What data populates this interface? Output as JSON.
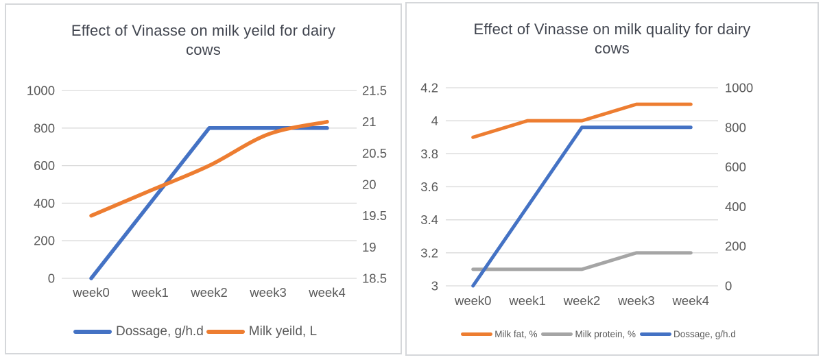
{
  "colors": {
    "blue": "#4472C4",
    "orange": "#ED7D31",
    "gray": "#A5A5A5",
    "gridline": "#d9d9d9",
    "tick_text": "#595959",
    "title_text": "#41454f",
    "card_border": "#d5d7da"
  },
  "chart_data": [
    {
      "type": "line",
      "title": "Effect of Vinasse on milk yeild for dairy cows",
      "categories": [
        "week0",
        "week1",
        "week2",
        "week3",
        "week4"
      ],
      "grid": "horizontal",
      "legend_position": "bottom",
      "axes": {
        "left": {
          "min": 0,
          "max": 1000,
          "step": 200,
          "labels": [
            "1000",
            "800",
            "600",
            "400",
            "200",
            "0"
          ]
        },
        "right": {
          "min": 18.5,
          "max": 21.5,
          "step": 0.5,
          "labels": [
            "21.5",
            "21",
            "20.5",
            "20",
            "19.5",
            "19",
            "18.5"
          ]
        }
      },
      "series": [
        {
          "name": "Dossage, g/h.d",
          "color": "#4472C4",
          "axis": "left",
          "smooth": false,
          "values": [
            0,
            400,
            800,
            800,
            800
          ]
        },
        {
          "name": "Milk yeild, L",
          "color": "#ED7D31",
          "axis": "right",
          "smooth": true,
          "values": [
            19.5,
            19.9,
            20.3,
            20.8,
            21
          ]
        }
      ]
    },
    {
      "type": "line",
      "title": "Effect of Vinasse on milk quality for dairy cows",
      "categories": [
        "week0",
        "week1",
        "week2",
        "week3",
        "week4"
      ],
      "grid": "horizontal",
      "legend_position": "bottom",
      "axes": {
        "left": {
          "min": 3,
          "max": 4.2,
          "step": 0.2,
          "labels": [
            "4.2",
            "4",
            "3.8",
            "3.6",
            "3.4",
            "3.2",
            "3"
          ]
        },
        "right": {
          "min": 0,
          "max": 1000,
          "step": 200,
          "labels": [
            "1000",
            "800",
            "600",
            "400",
            "200",
            "0"
          ]
        }
      },
      "series": [
        {
          "name": "Milk fat, %",
          "color": "#ED7D31",
          "axis": "left",
          "smooth": false,
          "values": [
            3.9,
            4,
            4,
            4.1,
            4.1
          ]
        },
        {
          "name": "Milk protein, %",
          "color": "#A5A5A5",
          "axis": "left",
          "smooth": false,
          "values": [
            3.1,
            3.1,
            3.1,
            3.2,
            3.2
          ]
        },
        {
          "name": "Dossage, g/h.d",
          "color": "#4472C4",
          "axis": "right",
          "smooth": false,
          "values": [
            0,
            400,
            800,
            800,
            800
          ]
        }
      ]
    }
  ]
}
